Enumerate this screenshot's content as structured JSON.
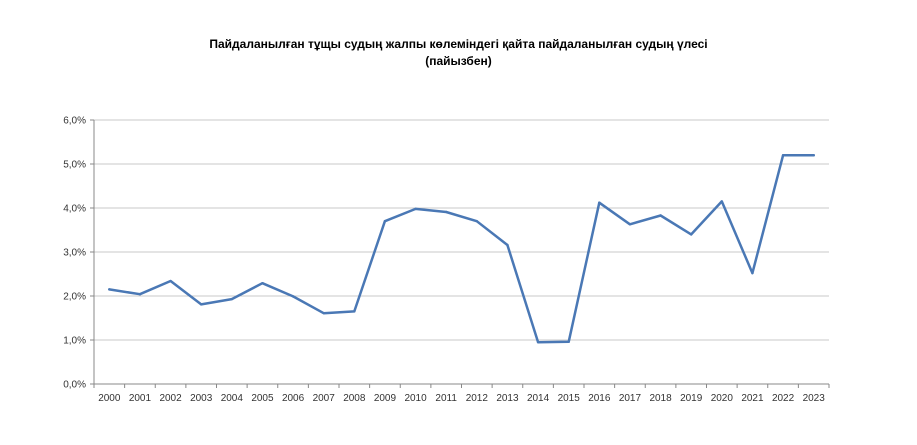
{
  "chart_data": {
    "type": "line",
    "title_line1": "Пайдаланылған тұщы судың жалпы көлеміндегі қайта пайдаланылған судың үлесі",
    "title_line2": "(пайызбен)",
    "xlabel": "",
    "ylabel": "",
    "ylim": [
      0,
      6
    ],
    "y_ticks": [
      "0,0%",
      "1,0%",
      "2,0%",
      "3,0%",
      "4,0%",
      "5,0%",
      "6,0%"
    ],
    "grid": true,
    "legend": "none",
    "line_color": "#4a78b5",
    "categories": [
      "2000",
      "2001",
      "2002",
      "2003",
      "2004",
      "2005",
      "2006",
      "2007",
      "2008",
      "2009",
      "2010",
      "2011",
      "2012",
      "2013",
      "2014",
      "2015",
      "2016",
      "2017",
      "2018",
      "2019",
      "2020",
      "2021",
      "2022",
      "2023"
    ],
    "series": [
      {
        "values": [
          2.15,
          2.04,
          2.34,
          1.81,
          1.93,
          2.29,
          1.99,
          1.61,
          1.65,
          3.7,
          3.98,
          3.91,
          3.7,
          3.16,
          0.95,
          0.96,
          4.12,
          3.63,
          3.83,
          3.4,
          4.15,
          2.52,
          5.2,
          5.2
        ]
      }
    ]
  }
}
